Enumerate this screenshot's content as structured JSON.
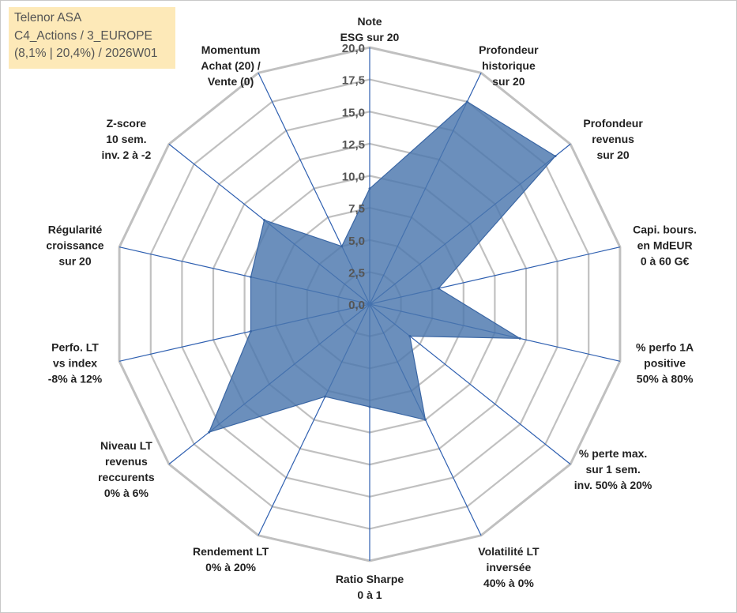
{
  "info": {
    "line1": "Telenor ASA",
    "line2": "C4_Actions / 3_EUROPE",
    "line3": "(8,1% | 20,4%) / 2026W01"
  },
  "colors": {
    "grid": "#c0c0c0",
    "spoke": "#2e5fb0",
    "series_fill": "#4a76ad",
    "series_stroke": "#3a66a4"
  },
  "chart_data": {
    "type": "radar",
    "title": "Telenor ASA",
    "rmin": 0,
    "rmax": 20,
    "ticks": [
      0,
      2.5,
      5,
      7.5,
      10,
      12.5,
      15,
      17.5,
      20
    ],
    "tick_labels": [
      "0,0",
      "2,5",
      "5,0",
      "7,5",
      "10,0",
      "12,5",
      "15,0",
      "17,5",
      "20,0"
    ],
    "axes": [
      {
        "label": [
          "Note",
          "ESG sur 20"
        ],
        "value": 9.0
      },
      {
        "label": [
          "Profondeur",
          "historique",
          "sur 20"
        ],
        "value": 17.5
      },
      {
        "label": [
          "Profondeur",
          "revenus",
          "sur 20"
        ],
        "value": 18.5
      },
      {
        "label": [
          "Capi. bours.",
          "en MdEUR",
          "0 à 60 G€"
        ],
        "value": 5.5
      },
      {
        "label": [
          "% perfo 1A",
          "positive",
          "50% à 80%"
        ],
        "value": 12.0
      },
      {
        "label": [
          "% perte max.",
          "sur 1 sem.",
          "inv. 50% à 20%"
        ],
        "value": 4.0
      },
      {
        "label": [
          "Volatilité LT",
          "inversée",
          "40% à 0%"
        ],
        "value": 10.0
      },
      {
        "label": [
          "Ratio Sharpe",
          "0 à 1"
        ],
        "value": 8.0
      },
      {
        "label": [
          "Rendement LT",
          "0% à 20%"
        ],
        "value": 8.0
      },
      {
        "label": [
          "Niveau LT",
          "revenus",
          "reccurents",
          "0% à 6%"
        ],
        "value": 16.0
      },
      {
        "label": [
          "Perfo. LT",
          "vs index",
          "-8% à 12%"
        ],
        "value": 9.5
      },
      {
        "label": [
          "Régularité",
          "croissance",
          "sur 20"
        ],
        "value": 9.5
      },
      {
        "label": [
          "Z-score",
          "10 sem.",
          "inv. 2 à -2"
        ],
        "value": 10.5
      },
      {
        "label": [
          "Momentum",
          "Achat (20) /",
          "Vente (0)"
        ],
        "value": 5.0
      }
    ]
  }
}
